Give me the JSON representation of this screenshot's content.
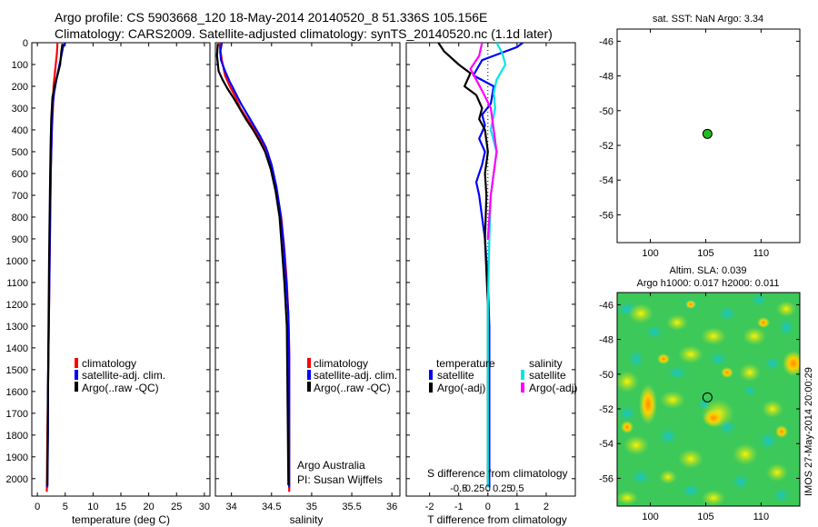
{
  "header": {
    "line1": "Argo profile: CS 5903668_120 18-May-2014 20140520_8 51.336S 105.156E",
    "line2": "Climatology: CARS2009. Satellite-adjusted climatology: synTS_20140520.nc (1.1d later)"
  },
  "colors": {
    "climatology": "#ff0000",
    "satellite": "#0000ff",
    "argo": "#000000",
    "sat_salinity": "#00e5e5",
    "argo_salinity": "#ff00ff",
    "marker": "#22bb22"
  },
  "chart_data": [
    {
      "id": "temperature",
      "type": "line",
      "xlabel": "temperature (deg C)",
      "ylabel": "",
      "xlim": [
        -1,
        31
      ],
      "ylim": [
        2080,
        0
      ],
      "x_ticks": [
        0,
        5,
        10,
        15,
        20,
        25,
        30
      ],
      "x_tick_labels": [
        "0",
        "5",
        "10",
        "15",
        "20",
        "25",
        "30"
      ],
      "y_ticks": [
        0,
        100,
        200,
        300,
        400,
        500,
        600,
        700,
        800,
        900,
        1000,
        1100,
        1200,
        1300,
        1400,
        1500,
        1600,
        1700,
        1800,
        1900,
        2000
      ],
      "y_tick_labels": [
        "0",
        "100",
        "200",
        "300",
        "400",
        "500",
        "600",
        "700",
        "800",
        "900",
        "1000",
        "1100",
        "1200",
        "1300",
        "1400",
        "1500",
        "1600",
        "1700",
        "1800",
        "1900",
        "2000"
      ],
      "legend": [
        "climatology",
        "satellite-adj. clim.",
        "Argo(..raw -QC)"
      ],
      "series": [
        {
          "name": "climatology",
          "color": "#ff0000",
          "x": [
            3.6,
            3.5,
            3.3,
            3.1,
            2.9,
            2.8,
            2.6,
            2.5,
            2.4,
            2.3,
            2.2,
            2.1,
            2.0,
            1.9,
            1.8,
            1.7
          ],
          "y": [
            0,
            50,
            100,
            150,
            200,
            300,
            400,
            500,
            600,
            800,
            1000,
            1200,
            1400,
            1600,
            1800,
            2060
          ]
        },
        {
          "name": "satellite-adj. clim.",
          "color": "#0000ff",
          "x": [
            5.0,
            4.6,
            4.3,
            3.9,
            3.4,
            3.0,
            2.7,
            2.6,
            2.5,
            2.4,
            2.3,
            2.2,
            2.1,
            2.0,
            1.9,
            1.9,
            1.8
          ],
          "y": [
            0,
            20,
            60,
            110,
            170,
            230,
            300,
            400,
            500,
            600,
            800,
            1000,
            1200,
            1400,
            1600,
            1800,
            2040
          ]
        },
        {
          "name": "Argo(..raw -QC)",
          "color": "#000000",
          "x": [
            4.5,
            4.3,
            4.1,
            3.6,
            3.1,
            2.7,
            2.5,
            2.4,
            2.3,
            2.2,
            2.1,
            2.0,
            1.9,
            1.8
          ],
          "y": [
            5,
            40,
            100,
            150,
            200,
            250,
            350,
            450,
            600,
            800,
            1000,
            1300,
            1600,
            2030
          ]
        }
      ]
    },
    {
      "id": "salinity",
      "type": "line",
      "xlabel": "salinity",
      "xlim": [
        33.8,
        36.1
      ],
      "ylim": [
        2080,
        0
      ],
      "x_ticks": [
        34,
        34.5,
        35,
        35.5,
        36
      ],
      "x_tick_labels": [
        "34",
        "34.5",
        "35",
        "35.5",
        "36"
      ],
      "legend": [
        "climatology",
        "satellite-adj. clim.",
        "Argo(..raw -QC)"
      ],
      "note_lines": [
        "Argo Australia",
        "PI: Susan Wijffels"
      ],
      "series": [
        {
          "name": "climatology",
          "color": "#ff0000",
          "x": [
            33.85,
            33.86,
            33.88,
            33.92,
            33.98,
            34.05,
            34.11,
            34.2,
            34.29,
            34.37,
            34.45,
            34.52,
            34.57,
            34.62,
            34.66,
            34.69,
            34.71,
            34.72,
            34.72
          ],
          "y": [
            0,
            30,
            80,
            150,
            200,
            250,
            300,
            350,
            400,
            450,
            500,
            600,
            700,
            800,
            950,
            1100,
            1250,
            1400,
            2060
          ]
        },
        {
          "name": "satellite-adj. clim.",
          "color": "#0000ff",
          "x": [
            33.88,
            33.86,
            33.87,
            33.92,
            33.98,
            34.05,
            34.12,
            34.2,
            34.28,
            34.36,
            34.43,
            34.5,
            34.56,
            34.61,
            34.65,
            34.68,
            34.71,
            34.72,
            34.72
          ],
          "y": [
            0,
            40,
            80,
            130,
            180,
            230,
            280,
            330,
            380,
            430,
            480,
            560,
            660,
            780,
            920,
            1080,
            1250,
            1450,
            2040
          ]
        },
        {
          "name": "Argo(..raw -QC)",
          "color": "#000000",
          "x": [
            33.83,
            33.82,
            33.84,
            33.89,
            33.95,
            34.02,
            34.1,
            34.18,
            34.27,
            34.35,
            34.42,
            34.49,
            34.55,
            34.6,
            34.63,
            34.66,
            34.69,
            34.71
          ],
          "y": [
            5,
            60,
            130,
            170,
            210,
            250,
            300,
            350,
            400,
            450,
            500,
            580,
            680,
            800,
            950,
            1100,
            1300,
            2030
          ]
        }
      ]
    },
    {
      "id": "difference",
      "type": "line",
      "xlabel": "T difference from climatology",
      "xlabel_top": "S difference from climatology",
      "xlim": [
        -2.8,
        3.0
      ],
      "ylim": [
        2080,
        0
      ],
      "x_ticks": [
        -2,
        -1,
        0,
        1,
        2
      ],
      "x_tick_labels": [
        "-2",
        "-1",
        "0",
        "1",
        "2"
      ],
      "top_tick_labels": [
        "-0.5",
        "-0.25",
        "0",
        "0.25",
        "0.5"
      ],
      "legend_headers": [
        "temperature",
        "salinity"
      ],
      "legend": [
        "satellite",
        "Argo(-adj)",
        "satellite",
        "Argo(-adj)"
      ],
      "series": [
        {
          "name": "temperature satellite",
          "color": "#0000ff",
          "x": [
            1.2,
            1.0,
            0.4,
            -0.2,
            -0.5,
            0.2,
            0.1,
            -0.2,
            -0.1,
            -0.3,
            -0.1,
            -0.2,
            -0.4,
            -0.3,
            -0.2,
            -0.1,
            0,
            0.05,
            0.05
          ],
          "y": [
            0,
            20,
            50,
            80,
            150,
            200,
            280,
            330,
            380,
            440,
            500,
            560,
            640,
            700,
            800,
            900,
            1100,
            1300,
            2040
          ]
        },
        {
          "name": "temperature Argo(-adj)",
          "color": "#000000",
          "x": [
            -1.7,
            -1.5,
            -1.0,
            -0.6,
            -0.8,
            -0.4,
            -0.2,
            -0.3,
            -0.1,
            0,
            -0.1,
            -0.05,
            -0.1,
            0,
            0
          ],
          "y": [
            0,
            40,
            100,
            140,
            200,
            240,
            300,
            350,
            400,
            500,
            600,
            700,
            900,
            1200,
            2030
          ]
        },
        {
          "name": "salinity satellite",
          "color": "#00e5e5",
          "x": [
            0.3,
            0.5,
            0.6,
            0.3,
            0.2,
            0.25,
            0.1,
            0.3,
            0.2,
            0.1,
            0.05,
            0,
            0
          ],
          "y": [
            0,
            50,
            100,
            170,
            230,
            300,
            400,
            500,
            600,
            700,
            900,
            1200,
            2040
          ]
        },
        {
          "name": "salinity Argo(-adj)",
          "color": "#ff00ff",
          "x": [
            -0.2,
            -0.3,
            -0.6,
            -0.4,
            -0.2,
            0.1,
            0.2,
            0.3,
            0.2,
            0.1,
            0.05,
            0
          ],
          "y": [
            0,
            60,
            120,
            170,
            220,
            300,
            400,
            500,
            600,
            700,
            800,
            900
          ]
        }
      ]
    },
    {
      "id": "sst_map",
      "type": "scatter",
      "title": "sat. SST: NaN Argo: 3.34",
      "xlim": [
        97,
        113.5
      ],
      "ylim": [
        -57.6,
        -45.3
      ],
      "x_ticks": [
        100,
        105,
        110
      ],
      "x_tick_labels": [
        "100",
        "105",
        "110"
      ],
      "y_ticks": [
        -46,
        -48,
        -50,
        -52,
        -54,
        -56
      ],
      "y_tick_labels": [
        "-46",
        "-48",
        "-50",
        "-52",
        "-54",
        "-56"
      ],
      "points": [
        {
          "x": 105.156,
          "y": -51.336
        }
      ]
    },
    {
      "id": "sla_map",
      "type": "heatmap",
      "title_lines": [
        "Altim. SLA: 0.039",
        "Argo h1000: 0.017 h2000: 0.011"
      ],
      "xlim": [
        97,
        113.5
      ],
      "ylim": [
        -57.6,
        -45.3
      ],
      "x_ticks": [
        100,
        105,
        110
      ],
      "x_tick_labels": [
        "100",
        "105",
        "110"
      ],
      "y_ticks": [
        -46,
        -48,
        -50,
        -52,
        -54,
        -56
      ],
      "y_tick_labels": [
        "-46",
        "-48",
        "-50",
        "-52",
        "-54",
        "-56"
      ],
      "points": [
        {
          "x": 105.156,
          "y": -51.336
        }
      ],
      "side_label": "IMOS 27-May-2014 20:00:29"
    }
  ]
}
